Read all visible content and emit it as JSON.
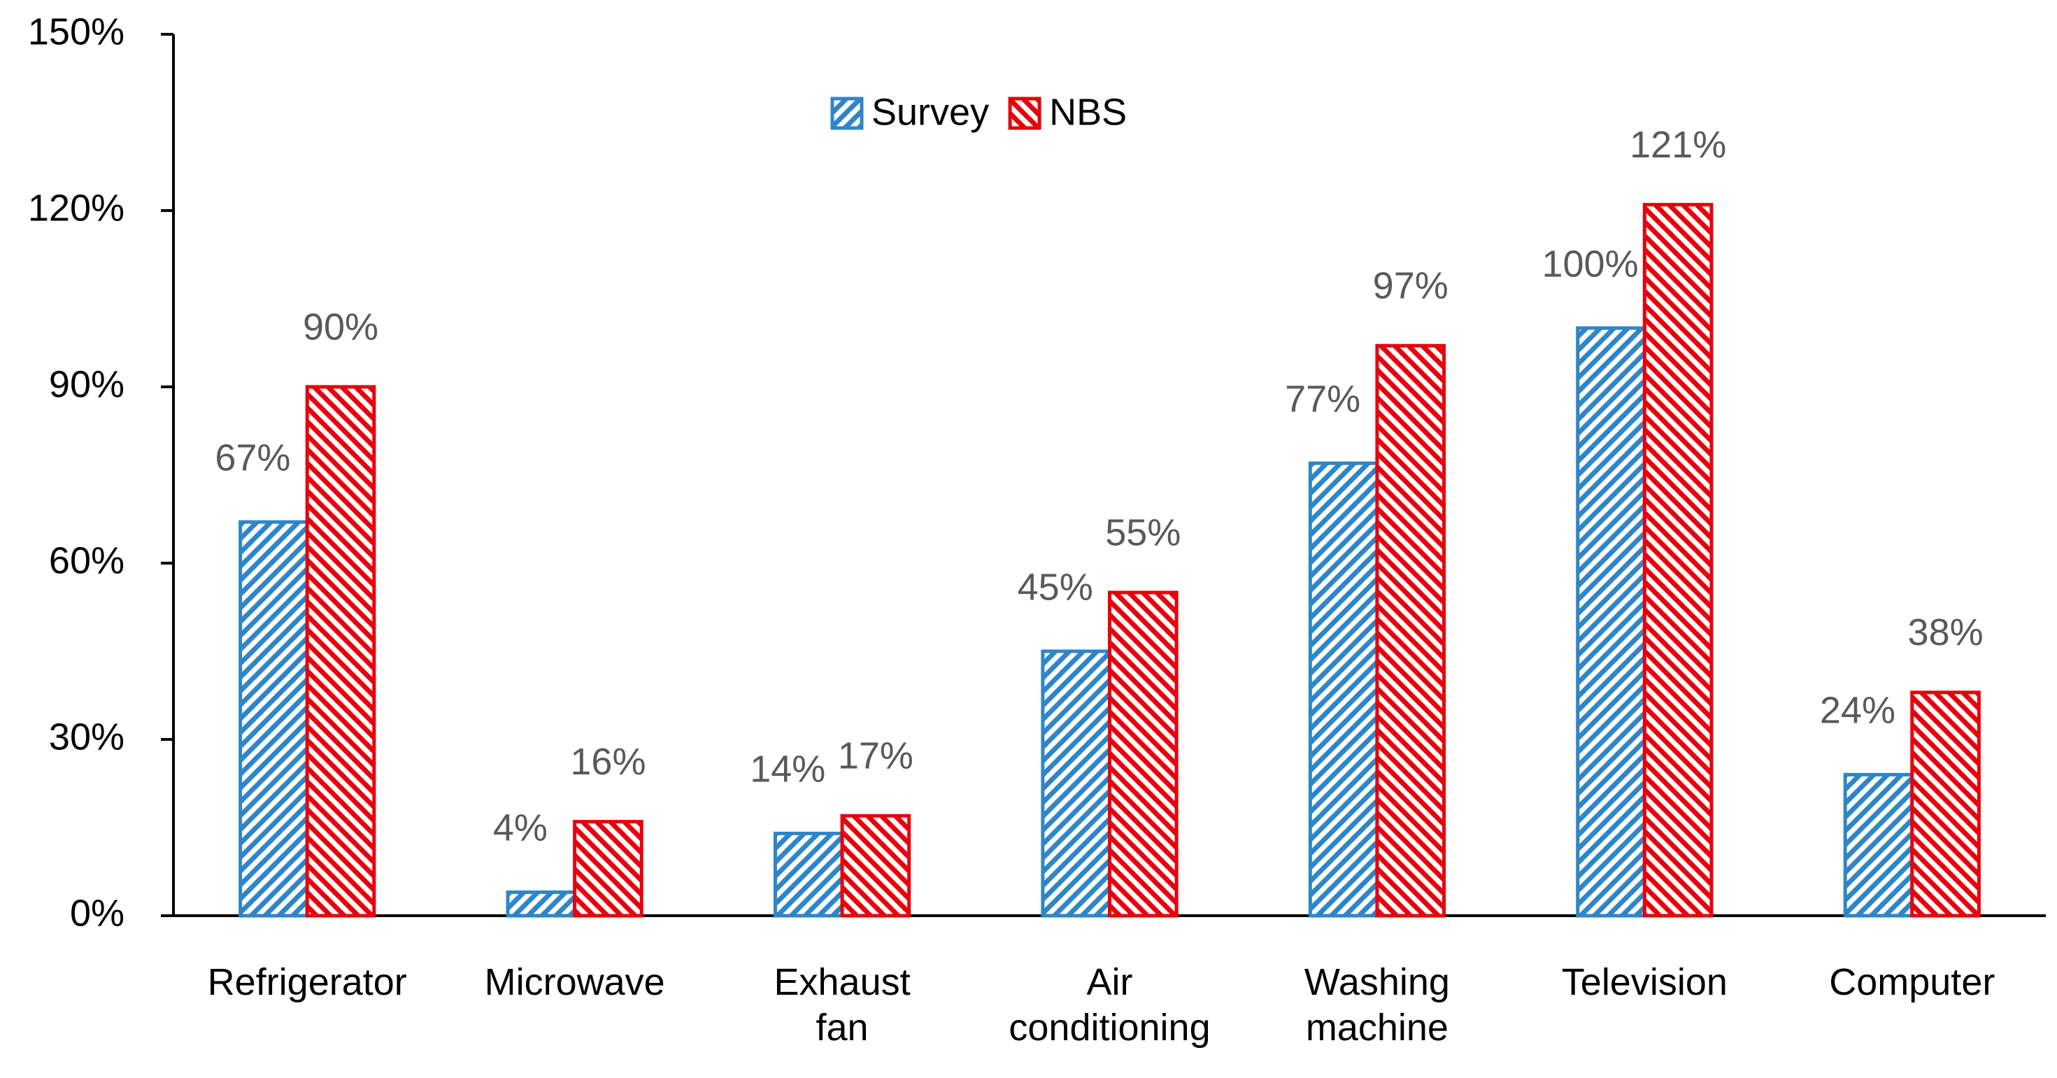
{
  "chart_data": {
    "type": "bar",
    "categories": [
      "Refrigerator",
      "Microwave",
      "Exhaust fan",
      "Air conditioning",
      "Washing machine",
      "Television",
      "Computer"
    ],
    "series": [
      {
        "name": "Survey",
        "color": "#2e86c8",
        "values": [
          67,
          4,
          14,
          45,
          77,
          100,
          24
        ],
        "value_labels": [
          "67%",
          "4%",
          "14%",
          "45%",
          "77%",
          "100%",
          "24%"
        ]
      },
      {
        "name": "NBS",
        "color": "#e8000b",
        "values": [
          90,
          16,
          17,
          55,
          97,
          121,
          38
        ],
        "value_labels": [
          "90%",
          "16%",
          "17%",
          "55%",
          "97%",
          "121%",
          "38%"
        ]
      }
    ],
    "ylim": [
      0,
      150
    ],
    "yticks": [
      {
        "value": 0,
        "label": "0%"
      },
      {
        "value": 30,
        "label": "30%"
      },
      {
        "value": 60,
        "label": "60%"
      },
      {
        "value": 90,
        "label": "90%"
      },
      {
        "value": 120,
        "label": "120%"
      },
      {
        "value": 150,
        "label": "150%"
      }
    ]
  }
}
